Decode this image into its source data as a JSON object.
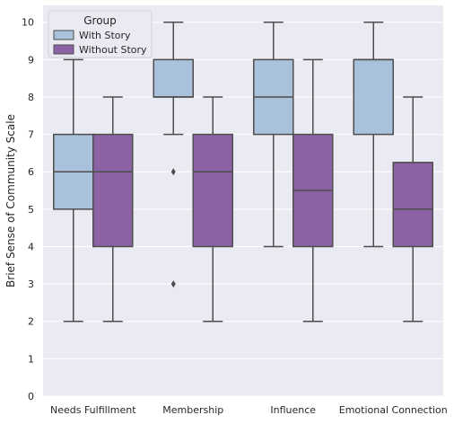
{
  "chart_data": {
    "type": "box",
    "title": "",
    "xlabel": "",
    "ylabel": "Brief Sense of Community Scale",
    "ylim": [
      0,
      10.45
    ],
    "yticks": [
      0,
      1,
      2,
      3,
      4,
      5,
      6,
      7,
      8,
      9,
      10
    ],
    "grid": true,
    "legend_placement": "top-left",
    "legend_title": "Group",
    "categories": [
      "Needs Fulfillment",
      "Membership",
      "Influence",
      "Emotional Connection"
    ],
    "series": [
      {
        "name": "With Story",
        "color": "#a9c1da",
        "boxes": [
          {
            "whisker_low": 2,
            "q1": 5,
            "median": 6,
            "q3": 7,
            "whisker_high": 9,
            "outliers": []
          },
          {
            "whisker_low": 7,
            "q1": 8,
            "median": 8,
            "q3": 9,
            "whisker_high": 10,
            "outliers": [
              6,
              3
            ]
          },
          {
            "whisker_low": 4,
            "q1": 7,
            "median": 8,
            "q3": 9,
            "whisker_high": 10,
            "outliers": []
          },
          {
            "whisker_low": 4,
            "q1": 7,
            "median": 9,
            "q3": 9,
            "whisker_high": 10,
            "outliers": []
          }
        ]
      },
      {
        "name": "Without Story",
        "color": "#8b62a3",
        "boxes": [
          {
            "whisker_low": 2,
            "q1": 4,
            "median": 6,
            "q3": 7,
            "whisker_high": 8,
            "outliers": []
          },
          {
            "whisker_low": 2,
            "q1": 4,
            "median": 6,
            "q3": 7,
            "whisker_high": 8,
            "outliers": []
          },
          {
            "whisker_low": 2,
            "q1": 4,
            "median": 5.5,
            "q3": 7,
            "whisker_high": 9,
            "outliers": []
          },
          {
            "whisker_low": 2,
            "q1": 4,
            "median": 5,
            "q3": 6.25,
            "whisker_high": 8,
            "outliers": []
          }
        ]
      }
    ],
    "colors": {
      "plot_background": "#eaeaf2",
      "grid": "#ffffff",
      "edge": "#4d4d4d"
    }
  }
}
